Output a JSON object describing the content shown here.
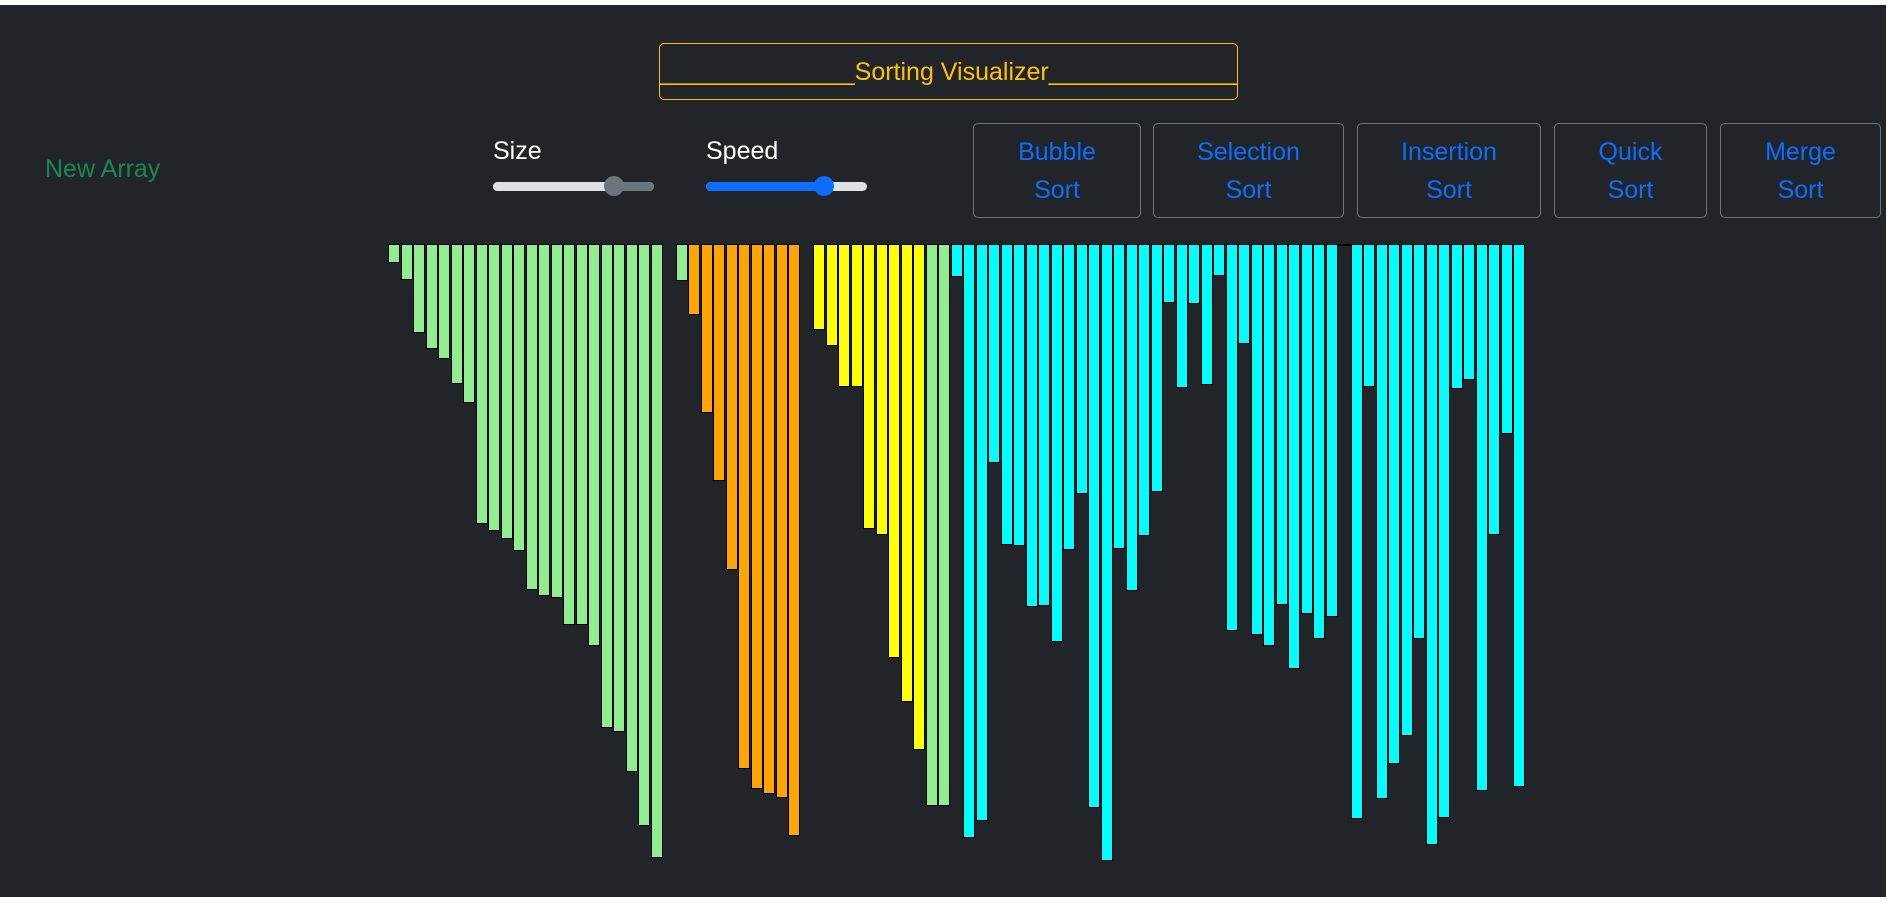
{
  "app": {
    "title": "______________Sorting Visualizer______________"
  },
  "controls": {
    "new_array_label": "New Array",
    "size_label": "Size",
    "size_value_pct": 75,
    "speed_label": "Speed",
    "speed_value_pct": 73
  },
  "buttons": [
    {
      "line1": "Bubble",
      "line2": "Sort"
    },
    {
      "line1": "Selection",
      "line2": "Sort"
    },
    {
      "line1": "Insertion",
      "line2": "Sort"
    },
    {
      "line1": "Quick",
      "line2": "Sort"
    },
    {
      "line1": "Merge",
      "line2": "Sort"
    }
  ],
  "colors": {
    "background": "#212529",
    "title": "#ffc107",
    "new_array": "#198754",
    "button_text": "#0d6efd",
    "sorted": "#90ee90",
    "pivot_region": "#ffa500",
    "compare_region": "#ffff00",
    "unsorted": "#00ffff"
  },
  "array": {
    "states": [
      "sorted",
      "sorted",
      "sorted",
      "sorted",
      "sorted",
      "sorted",
      "sorted",
      "sorted",
      "sorted",
      "sorted",
      "sorted",
      "sorted",
      "sorted",
      "sorted",
      "sorted",
      "sorted",
      "sorted",
      "sorted",
      "sorted",
      "sorted",
      "sorted",
      "sorted",
      "sorted",
      "sorted",
      "pivot_region",
      "pivot_region",
      "pivot_region",
      "pivot_region",
      "pivot_region",
      "pivot_region",
      "pivot_region",
      "pivot_region",
      "pivot_region",
      "pivot_region",
      "compare_region",
      "compare_region",
      "compare_region",
      "compare_region",
      "compare_region",
      "compare_region",
      "compare_region",
      "compare_region",
      "compare_region",
      "sorted",
      "sorted",
      "unsorted",
      "unsorted",
      "unsorted",
      "unsorted",
      "unsorted",
      "unsorted",
      "unsorted",
      "unsorted",
      "unsorted",
      "unsorted",
      "unsorted",
      "unsorted",
      "unsorted",
      "unsorted",
      "unsorted",
      "unsorted",
      "unsorted",
      "unsorted",
      "unsorted",
      "unsorted",
      "unsorted",
      "unsorted",
      "unsorted",
      "unsorted",
      "unsorted",
      "unsorted",
      "unsorted",
      "unsorted",
      "unsorted",
      "unsorted",
      "unsorted",
      "unsorted",
      "unsorted",
      "unsorted",
      "unsorted",
      "unsorted",
      "unsorted",
      "unsorted",
      "unsorted",
      "unsorted",
      "unsorted",
      "unsorted",
      "unsorted",
      "unsorted",
      "unsorted",
      "unsorted"
    ],
    "values": [
      19,
      36,
      89,
      105,
      115,
      140,
      159,
      280,
      287,
      295,
      307,
      346,
      352,
      354,
      381,
      381,
      402,
      484,
      488,
      528,
      582,
      614,
      0,
      37,
      71,
      169,
      237,
      326,
      525,
      545,
      550,
      554,
      592,
      0,
      86,
      102,
      143,
      143,
      285,
      291,
      414,
      458,
      506,
      562,
      562,
      33,
      594,
      577,
      219,
      301,
      302,
      363,
      362,
      398,
      306,
      250,
      564,
      617,
      305,
      347,
      292,
      248,
      59,
      144,
      60,
      141,
      32,
      387,
      100,
      391,
      402,
      361,
      425,
      370,
      395,
      373,
      2,
      575,
      143,
      555,
      520,
      492,
      395,
      601,
      574,
      145,
      136,
      547,
      291,
      190,
      543
    ]
  }
}
